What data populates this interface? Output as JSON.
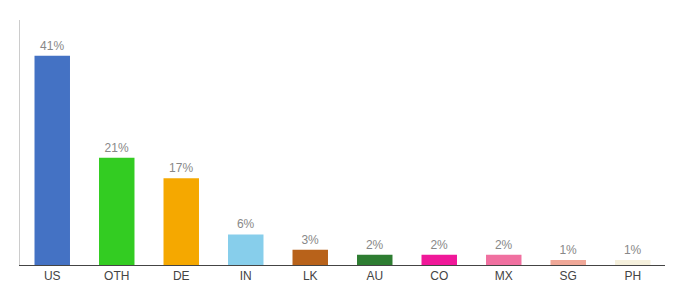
{
  "chart_data": {
    "type": "bar",
    "categories": [
      "US",
      "OTH",
      "DE",
      "IN",
      "LK",
      "AU",
      "CO",
      "MX",
      "SG",
      "PH"
    ],
    "values": [
      41,
      21,
      17,
      6,
      3,
      2,
      2,
      2,
      1,
      1
    ],
    "value_labels": [
      "41%",
      "21%",
      "17%",
      "6%",
      "3%",
      "2%",
      "2%",
      "2%",
      "1%",
      "1%"
    ],
    "data_labels": true,
    "colors": [
      "#4472c4",
      "#33cc22",
      "#f5a800",
      "#87ceeb",
      "#b8621a",
      "#2e7d32",
      "#f01899",
      "#f070a0",
      "#f0a898",
      "#f5f0dc"
    ],
    "ylim": [
      0,
      48
    ],
    "grid": false,
    "tick_labels": "x"
  }
}
